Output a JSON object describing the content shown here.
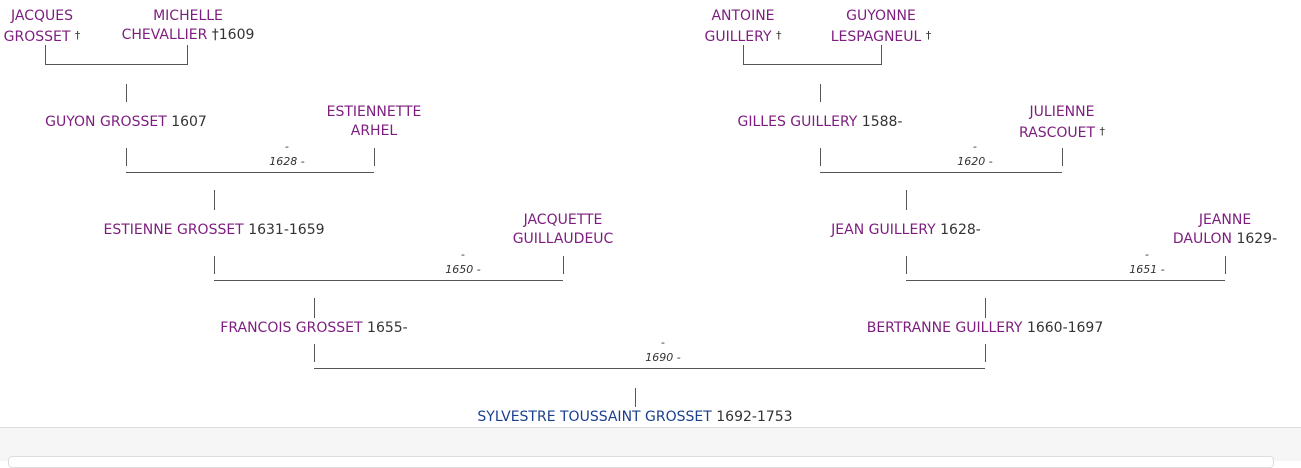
{
  "people": [
    {
      "name": [
        "JACQUES",
        "GROSSET"
      ],
      "dates": "†"
    },
    {
      "name": [
        "MICHELLE",
        "CHEVALLIER"
      ],
      "dates": "†1609"
    },
    {
      "name": [
        "ANTOINE",
        "GUILLERY"
      ],
      "dates": "†"
    },
    {
      "name": [
        "GUYONNE",
        "LESPAGNEUL"
      ],
      "dates": "†"
    },
    {
      "name": [
        "GUYON GROSSET"
      ],
      "dates": "1607"
    },
    {
      "name": [
        "ESTIENNETTE",
        "ARHEL"
      ]
    },
    {
      "name": [
        "GILLES GUILLERY"
      ],
      "dates": "1588-"
    },
    {
      "name": [
        "JULIENNE",
        "RASCOUET"
      ],
      "dates": "†"
    },
    {
      "name": [
        "ESTIENNE GROSSET"
      ],
      "dates": "1631-1659"
    },
    {
      "name": [
        "JACQUETTE",
        "GUILLAUDEUC"
      ]
    },
    {
      "name": [
        "JEAN GUILLERY"
      ],
      "dates": "1628-"
    },
    {
      "name": [
        "JEANNE",
        "DAULON"
      ],
      "dates": "1629-"
    },
    {
      "name": [
        "FRANCOIS GROSSET"
      ],
      "dates": "1655-"
    },
    {
      "name": [
        "BERTRANNE GUILLERY"
      ],
      "dates": "1660-1697"
    },
    {
      "name": [
        "SYLVESTRE TOUSSAINT GROSSET"
      ],
      "dates": "1692-1753"
    }
  ],
  "marriages": [
    {
      "separator": "-",
      "date": "1628 -"
    },
    {
      "separator": "-",
      "date": "1620 -"
    },
    {
      "separator": "-",
      "date": "1650 -"
    },
    {
      "separator": "-",
      "date": "1651 -"
    },
    {
      "separator": "-",
      "date": "1690 -"
    }
  ]
}
